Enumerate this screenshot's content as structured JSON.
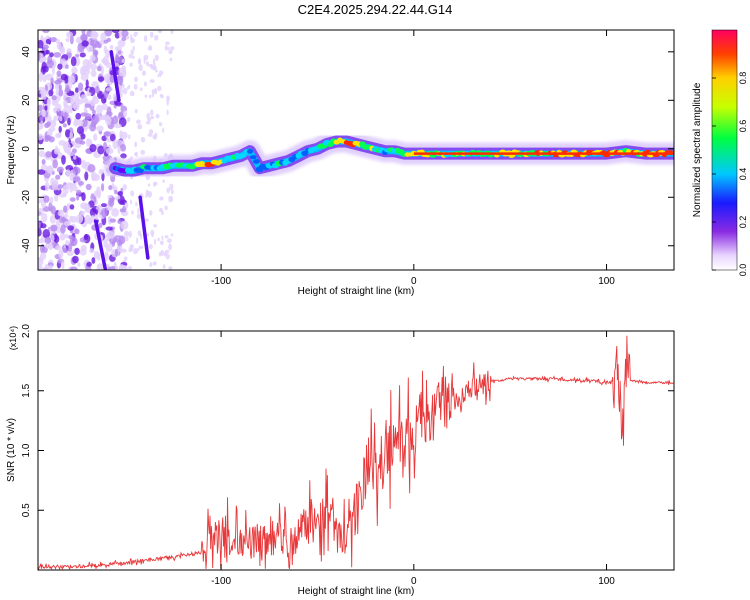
{
  "title": "C2E4.2025.294.22.44.G14",
  "colors": {
    "snr_line": "#e8383a",
    "ridge": [
      "#6a00ff",
      "#0060ff",
      "#00d8ff",
      "#00ff50",
      "#ffe600",
      "#ff2b00"
    ]
  },
  "chart_data": [
    {
      "type": "heatmap",
      "xlabel": "Height of straight line (km)",
      "ylabel": "Frequency (Hz)",
      "xlim": [
        -195,
        135
      ],
      "ylim": [
        -50,
        49
      ],
      "xticks": [
        -100,
        0,
        100
      ],
      "yticks": [
        -40,
        -20,
        0,
        20,
        40
      ],
      "colorbar": {
        "label": "Normalized spectral amplitude",
        "range": [
          0,
          1
        ],
        "ticks": [
          "0.0",
          "0.2",
          "0.4",
          "0.6",
          "0.8"
        ],
        "colormap": "rainbow (purple-blue-cyan-green-yellow-red)"
      },
      "ridge": {
        "x": [
          -155,
          -150,
          -145,
          -140,
          -135,
          -130,
          -125,
          -120,
          -115,
          -110,
          -105,
          -100,
          -95,
          -90,
          -85,
          -80,
          -75,
          -70,
          -65,
          -60,
          -55,
          -50,
          -45,
          -40,
          -35,
          -30,
          -25,
          -20,
          -15,
          -10,
          -5,
          0,
          10,
          20,
          40,
          60,
          80,
          100,
          110,
          120,
          130,
          135
        ],
        "y": [
          -8,
          -9,
          -9,
          -8,
          -8,
          -8,
          -7,
          -7,
          -7,
          -6,
          -6,
          -5,
          -4,
          -3,
          -1,
          -8,
          -7,
          -6,
          -5,
          -3,
          -1,
          0,
          2,
          3,
          3,
          2,
          1,
          0,
          -1,
          -1,
          -2,
          -2,
          -2,
          -2,
          -2,
          -2,
          -2,
          -2,
          -1,
          -2,
          -2,
          -2
        ],
        "amplitude": [
          0.2,
          0.35,
          0.4,
          0.45,
          0.4,
          0.45,
          0.5,
          0.55,
          0.6,
          0.8,
          0.9,
          0.6,
          0.5,
          0.45,
          0.4,
          0.4,
          0.45,
          0.5,
          0.45,
          0.4,
          0.45,
          0.5,
          0.6,
          0.7,
          0.8,
          0.75,
          0.7,
          0.6,
          0.5,
          0.5,
          0.6,
          0.8,
          0.7,
          0.6,
          0.65,
          0.75,
          0.8,
          0.9,
          0.7,
          0.85,
          0.9,
          0.9
        ]
      },
      "streaks": [
        {
          "x": [
            -157,
            -153
          ],
          "y": [
            40,
            20
          ]
        },
        {
          "x": [
            -142,
            -138
          ],
          "y": [
            -20,
            -45
          ]
        },
        {
          "x": [
            -165,
            -160
          ],
          "y": [
            -30,
            -50
          ]
        }
      ]
    },
    {
      "type": "line",
      "xlabel": "Height of straight line (km)",
      "ylabel": "SNR (10 * v/v)",
      "y_multiplier": "(x10⁴)",
      "xlim": [
        -195,
        135
      ],
      "ylim": [
        0,
        2.0
      ],
      "xticks": [
        -100,
        0,
        100
      ],
      "yticks": [
        0.5,
        1.0,
        1.5,
        2.0
      ],
      "series": [
        {
          "x": [
            -195,
            -180,
            -160,
            -140,
            -130,
            -120,
            -110,
            -105,
            -100,
            -95,
            -90,
            -85,
            -80,
            -75,
            -70,
            -65,
            -60,
            -55,
            -50,
            -45,
            -40,
            -35,
            -30,
            -25,
            -20,
            -15,
            -10,
            -5,
            0,
            5,
            10,
            20,
            30,
            40,
            50,
            60,
            70,
            80,
            90,
            100,
            105,
            108,
            110,
            115,
            120,
            130,
            135
          ],
          "y": [
            0.02,
            0.03,
            0.04,
            0.08,
            0.1,
            0.12,
            0.15,
            0.25,
            0.35,
            0.28,
            0.25,
            0.22,
            0.26,
            0.24,
            0.28,
            0.22,
            0.3,
            0.38,
            0.35,
            0.5,
            0.3,
            0.25,
            0.5,
            0.8,
            0.85,
            0.95,
            1.1,
            1.1,
            1.15,
            1.3,
            1.3,
            1.42,
            1.5,
            1.58,
            1.6,
            1.6,
            1.6,
            1.59,
            1.59,
            1.57,
            1.58,
            1.3,
            1.58,
            1.58,
            1.57,
            1.57,
            1.57
          ]
        }
      ]
    }
  ]
}
